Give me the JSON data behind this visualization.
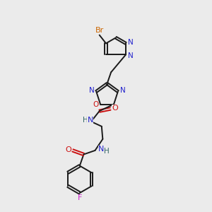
{
  "bg_color": "#ebebeb",
  "bond_color": "#1a1a1a",
  "n_color": "#2020cc",
  "o_color": "#cc1111",
  "f_color": "#cc22cc",
  "br_color": "#cc6600",
  "hn_color": "#336666",
  "figsize": [
    3.0,
    3.0
  ],
  "dpi": 100,
  "lw": 1.4,
  "fs": 7.5,
  "xlim": [
    2.0,
    8.0
  ],
  "ylim": [
    0.3,
    9.8
  ]
}
